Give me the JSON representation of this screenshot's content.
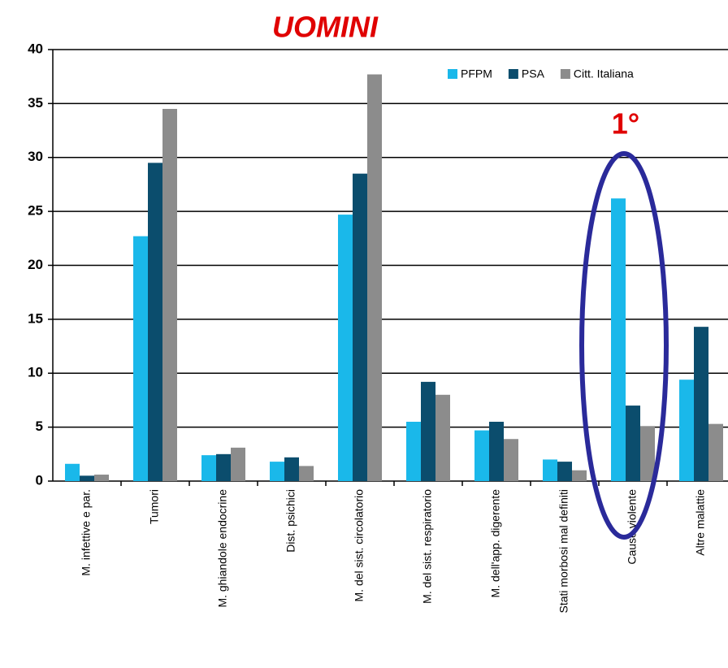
{
  "chart_data": {
    "type": "bar",
    "title": "UOMINI",
    "categories": [
      "M. infettive e par.",
      "Tumori",
      "M. ghiandole endocrine",
      "Dist. psichici",
      "M. del sist. circolatorio",
      "M. del sist. respiratorio",
      "M. dell'app. digerente",
      "Stati morbosi mal definiti",
      "Cause violente",
      "Altre malattie"
    ],
    "series": [
      {
        "name": "PFPM",
        "color": "#1ab8ea",
        "values": [
          1.6,
          22.7,
          2.4,
          1.8,
          24.7,
          5.5,
          4.7,
          2.0,
          26.2,
          9.4
        ]
      },
      {
        "name": "PSA",
        "color": "#0b4d6d",
        "values": [
          0.5,
          29.5,
          2.5,
          2.2,
          28.5,
          9.2,
          5.5,
          1.8,
          7.0,
          14.3
        ]
      },
      {
        "name": "Citt. Italiana",
        "color": "#8c8c8c",
        "values": [
          0.6,
          34.5,
          3.1,
          1.4,
          37.7,
          8.0,
          3.9,
          1.0,
          5.1,
          5.3
        ]
      }
    ],
    "ylim": [
      0,
      40
    ],
    "yticks": [
      0,
      5,
      10,
      15,
      20,
      25,
      30,
      35,
      40
    ],
    "grid": true,
    "legend": "top-right",
    "annotations": [
      "1°"
    ]
  }
}
